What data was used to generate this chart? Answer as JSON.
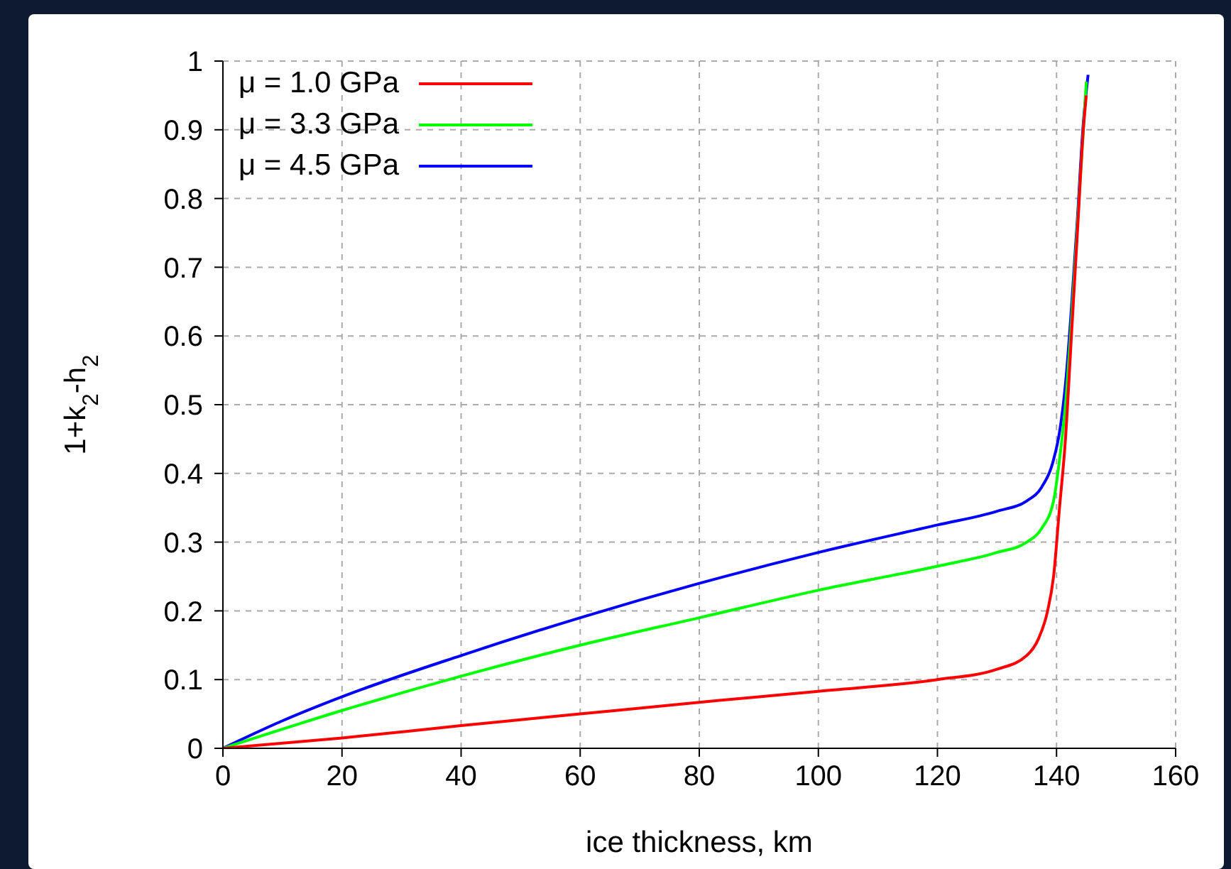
{
  "chart_data": {
    "type": "line",
    "xlabel": "ice thickness, km",
    "ylabel": "1+k$_{2}$-h$_{2}$",
    "xlim": [
      0,
      160
    ],
    "xticks": [
      0,
      20,
      40,
      60,
      80,
      100,
      120,
      140,
      160
    ],
    "ylim": [
      0,
      1
    ],
    "yticks": [
      0,
      0.1,
      0.2,
      0.3,
      0.4,
      0.5,
      0.6,
      0.7,
      0.8,
      0.9,
      1
    ],
    "grid": true,
    "legend": "top left",
    "marker": "none",
    "line_style": "solid",
    "series": [
      {
        "name": "μ = 1.0 GPa",
        "color": "#ff0000",
        "x": [
          0,
          20,
          40,
          60,
          80,
          100,
          120,
          130,
          135,
          137,
          138.5,
          139.5,
          140.5,
          141.5,
          142.5,
          143.5,
          144.5,
          145
        ],
        "values": [
          0,
          0.015,
          0.033,
          0.05,
          0.067,
          0.083,
          0.1,
          0.115,
          0.135,
          0.16,
          0.2,
          0.25,
          0.35,
          0.45,
          0.6,
          0.75,
          0.9,
          0.95
        ]
      },
      {
        "name": "μ = 3.3 GPa",
        "color": "#00ff00",
        "x": [
          0,
          20,
          40,
          60,
          80,
          100,
          120,
          130,
          135,
          137.5,
          139.5,
          140.5,
          141.5,
          142.5,
          143.5,
          144.5,
          145
        ],
        "values": [
          0,
          0.055,
          0.105,
          0.15,
          0.19,
          0.23,
          0.265,
          0.285,
          0.3,
          0.32,
          0.36,
          0.42,
          0.5,
          0.62,
          0.76,
          0.9,
          0.97
        ]
      },
      {
        "name": "μ = 4.5 GPa",
        "color": "#0000ff",
        "x": [
          0,
          10,
          20,
          40,
          60,
          80,
          100,
          120,
          130,
          135,
          137.5,
          139.5,
          140.5,
          141.5,
          142.5,
          143.5,
          144.5,
          145.3
        ],
        "values": [
          0,
          0.04,
          0.075,
          0.135,
          0.19,
          0.24,
          0.285,
          0.325,
          0.345,
          0.36,
          0.38,
          0.42,
          0.46,
          0.53,
          0.64,
          0.77,
          0.91,
          0.98
        ]
      }
    ]
  }
}
